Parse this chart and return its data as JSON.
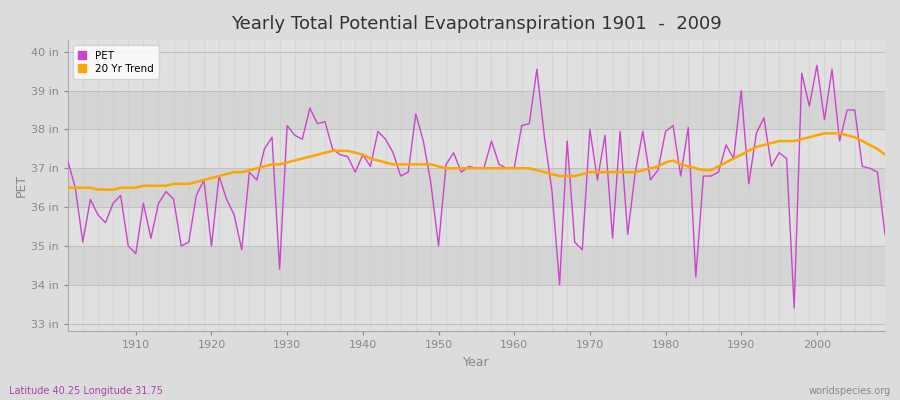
{
  "title": "Yearly Total Potential Evapotranspiration 1901  -  2009",
  "xlabel": "Year",
  "ylabel": "PET",
  "subtitle_lat_lon": "Latitude 40.25 Longitude 31.75",
  "watermark": "worldspecies.org",
  "pet_color": "#CC44CC",
  "trend_color": "#FFA500",
  "bg_color": "#DCDCDC",
  "plot_bg_light": "#E8E8E8",
  "plot_bg_dark": "#D8D8D8",
  "ylim": [
    32.8,
    40.3
  ],
  "yticks": [
    33,
    34,
    35,
    36,
    37,
    38,
    39,
    40
  ],
  "ytick_labels": [
    "33 in",
    "34 in",
    "35 in",
    "36 in",
    "37 in",
    "38 in",
    "39 in",
    "40 in"
  ],
  "years": [
    1901,
    1902,
    1903,
    1904,
    1905,
    1906,
    1907,
    1908,
    1909,
    1910,
    1911,
    1912,
    1913,
    1914,
    1915,
    1916,
    1917,
    1918,
    1919,
    1920,
    1921,
    1922,
    1923,
    1924,
    1925,
    1926,
    1927,
    1928,
    1929,
    1930,
    1931,
    1932,
    1933,
    1934,
    1935,
    1936,
    1937,
    1938,
    1939,
    1940,
    1941,
    1942,
    1943,
    1944,
    1945,
    1946,
    1947,
    1948,
    1949,
    1950,
    1951,
    1952,
    1953,
    1954,
    1955,
    1956,
    1957,
    1958,
    1959,
    1960,
    1961,
    1962,
    1963,
    1964,
    1965,
    1966,
    1967,
    1968,
    1969,
    1970,
    1971,
    1972,
    1973,
    1974,
    1975,
    1976,
    1977,
    1978,
    1979,
    1980,
    1981,
    1982,
    1983,
    1984,
    1985,
    1986,
    1987,
    1988,
    1989,
    1990,
    1991,
    1992,
    1993,
    1994,
    1995,
    1996,
    1997,
    1998,
    1999,
    2000,
    2001,
    2002,
    2003,
    2004,
    2005,
    2006,
    2007,
    2008,
    2009
  ],
  "pet": [
    37.2,
    36.5,
    35.1,
    36.2,
    35.8,
    35.6,
    36.1,
    36.3,
    35.0,
    34.8,
    36.1,
    35.2,
    36.1,
    36.4,
    36.2,
    35.0,
    35.1,
    36.3,
    36.7,
    35.0,
    36.8,
    36.2,
    35.8,
    34.9,
    36.9,
    36.7,
    37.5,
    37.8,
    34.4,
    38.1,
    37.85,
    37.75,
    38.55,
    38.15,
    38.2,
    37.5,
    37.35,
    37.3,
    36.9,
    37.35,
    37.05,
    37.95,
    37.75,
    37.4,
    36.8,
    36.9,
    38.4,
    37.7,
    36.6,
    35.0,
    37.1,
    37.4,
    36.9,
    37.05,
    37.0,
    37.0,
    37.7,
    37.1,
    37.0,
    37.0,
    38.1,
    38.15,
    39.55,
    37.8,
    36.4,
    34.0,
    37.7,
    35.1,
    34.9,
    38.0,
    36.7,
    37.85,
    35.2,
    37.95,
    35.3,
    36.9,
    37.95,
    36.7,
    36.95,
    37.95,
    38.1,
    36.8,
    38.05,
    34.2,
    36.8,
    36.8,
    36.9,
    37.6,
    37.25,
    39.0,
    36.6,
    37.9,
    38.3,
    37.05,
    37.4,
    37.25,
    33.4,
    39.45,
    38.6,
    39.65,
    38.25,
    39.55,
    37.7,
    38.5,
    38.5,
    37.05,
    37.0,
    36.9,
    35.3
  ],
  "trend": [
    36.5,
    36.5,
    36.5,
    36.5,
    36.45,
    36.45,
    36.45,
    36.5,
    36.5,
    36.5,
    36.55,
    36.55,
    36.55,
    36.55,
    36.6,
    36.6,
    36.6,
    36.65,
    36.7,
    36.75,
    36.8,
    36.85,
    36.9,
    36.9,
    36.95,
    37.0,
    37.05,
    37.1,
    37.1,
    37.15,
    37.2,
    37.25,
    37.3,
    37.35,
    37.4,
    37.45,
    37.45,
    37.45,
    37.4,
    37.35,
    37.25,
    37.2,
    37.15,
    37.1,
    37.1,
    37.1,
    37.1,
    37.1,
    37.1,
    37.05,
    37.0,
    37.0,
    37.0,
    37.0,
    37.0,
    37.0,
    37.0,
    37.0,
    37.0,
    37.0,
    37.0,
    37.0,
    36.95,
    36.9,
    36.85,
    36.8,
    36.8,
    36.8,
    36.85,
    36.9,
    36.9,
    36.9,
    36.9,
    36.9,
    36.9,
    36.9,
    36.95,
    37.0,
    37.05,
    37.15,
    37.2,
    37.1,
    37.05,
    37.0,
    36.95,
    36.95,
    37.05,
    37.15,
    37.25,
    37.35,
    37.45,
    37.55,
    37.6,
    37.65,
    37.7,
    37.7,
    37.7,
    37.75,
    37.8,
    37.85,
    37.9,
    37.9,
    37.9,
    37.85,
    37.8,
    37.7,
    37.6,
    37.5,
    37.35
  ],
  "grid_color": "#BBBBBB",
  "grid_minor_color": "#CCCCCC",
  "title_fontsize": 13,
  "axis_label_fontsize": 9,
  "tick_fontsize": 8,
  "tick_color": "#888888",
  "band_colors": [
    "#E0E0E0",
    "#D4D4D4"
  ]
}
